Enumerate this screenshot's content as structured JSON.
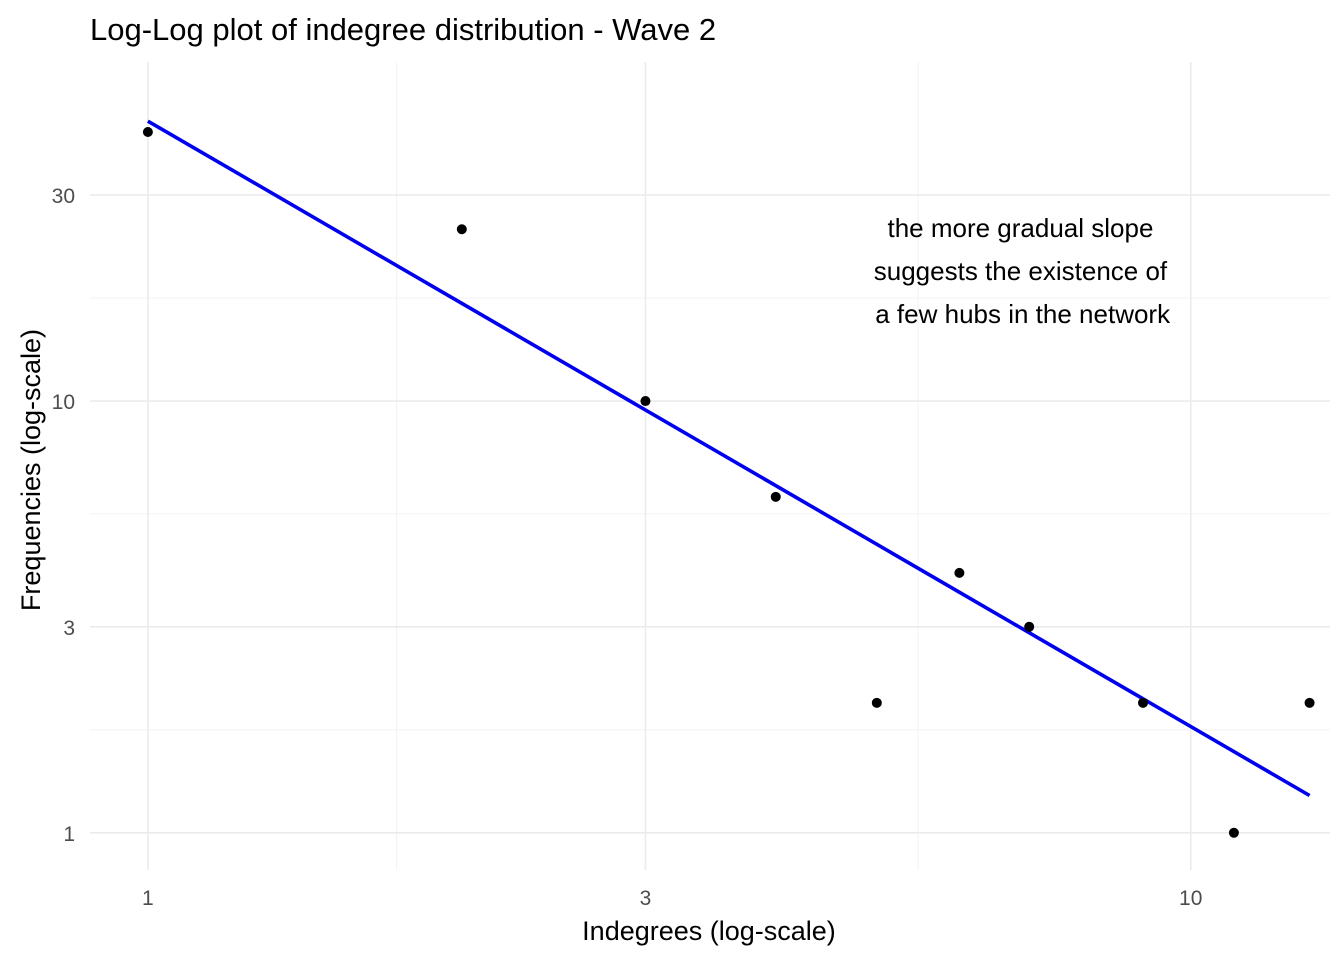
{
  "chart_data": {
    "type": "scatter",
    "title": "Log-Log plot of indegree distribution - Wave 2",
    "xlabel": "Indegrees (log-scale)",
    "ylabel": "Frequencies (log-scale)",
    "x_scale": "log10",
    "y_scale": "log10",
    "xlim": [
      0.88,
      13.6
    ],
    "ylim": [
      0.82,
      61
    ],
    "x_ticks": [
      {
        "value": 1,
        "label": "1"
      },
      {
        "value": 3,
        "label": "3"
      },
      {
        "value": 10,
        "label": "10"
      }
    ],
    "y_ticks": [
      {
        "value": 1,
        "label": "1"
      },
      {
        "value": 3,
        "label": "3"
      },
      {
        "value": 10,
        "label": "10"
      },
      {
        "value": 30,
        "label": "30"
      }
    ],
    "x_minor_grid": [
      1.732,
      5.477
    ],
    "y_minor_grid": [
      1.732,
      5.477,
      17.32
    ],
    "grid": true,
    "points": [
      {
        "x": 1,
        "y": 42
      },
      {
        "x": 2,
        "y": 25
      },
      {
        "x": 3,
        "y": 10
      },
      {
        "x": 4,
        "y": 6
      },
      {
        "x": 5,
        "y": 2
      },
      {
        "x": 6,
        "y": 4
      },
      {
        "x": 7,
        "y": 3
      },
      {
        "x": 9,
        "y": 2
      },
      {
        "x": 11,
        "y": 1
      },
      {
        "x": 13,
        "y": 2
      }
    ],
    "point_color": "#000000",
    "fit_line": {
      "type": "linear-fit-in-log-space",
      "color": "#0000ee",
      "x_start": 1,
      "y_start": 44.5,
      "x_end": 13,
      "y_end": 1.22
    },
    "annotation": {
      "lines": [
        "the more gradual slope",
        "suggests the existence of",
        "a few hubs in the network"
      ],
      "x": 6.9,
      "y": 20
    }
  }
}
